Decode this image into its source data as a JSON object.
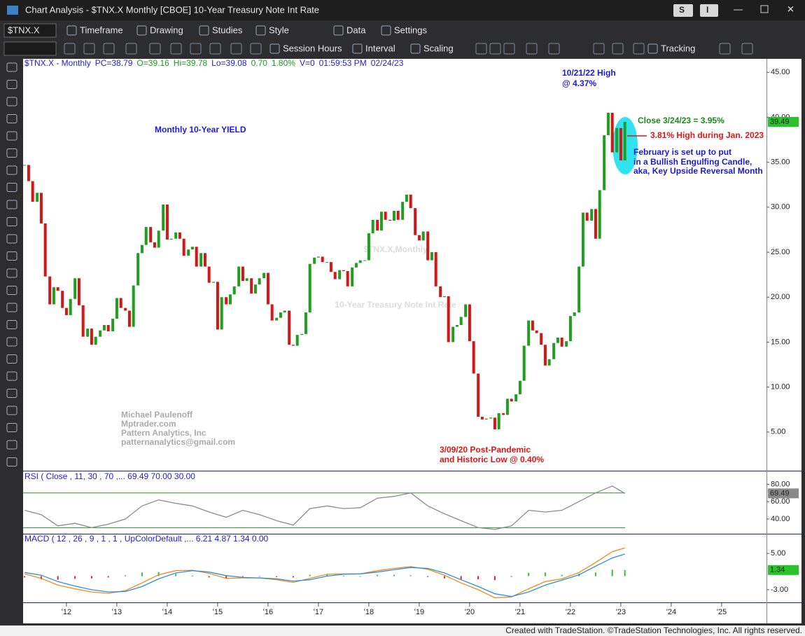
{
  "window": {
    "title": "Chart Analysis - $TNX.X Monthly [CBOE] 10-Year Treasury Note Int Rate",
    "buttons": [
      "S",
      "I"
    ]
  },
  "toolbar1": {
    "symbol": "$TNX.X",
    "items": [
      "Timeframe",
      "Drawing",
      "Studies",
      "Style",
      "Data",
      "Settings"
    ]
  },
  "toolbar2": {
    "items": [
      "Session Hours",
      "Interval",
      "Scaling",
      "Tracking"
    ]
  },
  "info": [
    {
      "text": "$TNX.X - Monthly",
      "color": "#1d1dd6"
    },
    {
      "text": "PC=38.79",
      "color": "#1d1dd6"
    },
    {
      "text": "O=39.16",
      "color": "#1a9a1a"
    },
    {
      "text": "Hi=39.78",
      "color": "#1a9a1a"
    },
    {
      "text": "Lo=39.08",
      "color": "#1d1dd6"
    },
    {
      "text": "0.70",
      "color": "#1a9a1a"
    },
    {
      "text": "1.80%",
      "color": "#1a9a1a"
    },
    {
      "text": "V=0",
      "color": "#1d1dd6"
    },
    {
      "text": "01:59:53 PM",
      "color": "#1d1dd6"
    },
    {
      "text": "02/24/23",
      "color": "#1d1dd6"
    }
  ],
  "headline": "Monthly 10-Year YIELD",
  "annotations": [
    {
      "text": "10/21/22 High",
      "color": "#1a1ad6"
    },
    {
      "text": "@ 4.37%",
      "color": "#1a1ad6"
    },
    {
      "text": "Close 3/24/23 = 3.95%",
      "color": "#1a8a1a"
    },
    {
      "text": "3.81% High during Jan. 2023",
      "color": "#e01515"
    },
    {
      "text": "February is set up to put",
      "color": "#1a1ad6"
    },
    {
      "text": "in a Bullish Engulfing Candle,",
      "color": "#1a1ad6"
    },
    {
      "text": "aka, Key Upside Reversal Month",
      "color": "#1a1ad6"
    },
    {
      "text": "3/09/20 Post-Pandemic",
      "color": "#e01515"
    },
    {
      "text": "and Historic Low @ 0.40%",
      "color": "#e01515"
    }
  ],
  "watermark": [
    "$TNX.X,Monthly",
    "10-Year Treasury Note Int Rate"
  ],
  "author": [
    "Michael Paulenoff",
    "Mptrader.com",
    "Pattern Analytics, Inc",
    "patternanalytics@gmail.com"
  ],
  "chart_data": [
    {
      "type": "candlestick",
      "up_color": "#1f9e1f",
      "down_color": "#d01818",
      "marker_label": "39.49",
      "marker_color": "#29c229",
      "xlim": [
        2011.14,
        2025.89
      ],
      "ylim": [
        0.7,
        46.5
      ],
      "xticks": [
        {
          "value": 2012,
          "label": "'12"
        },
        {
          "value": 2013,
          "label": "'13"
        },
        {
          "value": 2014,
          "label": "'14"
        },
        {
          "value": 2015,
          "label": "'15"
        },
        {
          "value": 2016,
          "label": "'16"
        },
        {
          "value": 2017,
          "label": "'17"
        },
        {
          "value": 2018,
          "label": "'18"
        },
        {
          "value": 2019,
          "label": "'19"
        },
        {
          "value": 2020,
          "label": "'20"
        },
        {
          "value": 2021,
          "label": "'21"
        },
        {
          "value": 2022,
          "label": "'22"
        },
        {
          "value": 2023,
          "label": "'23"
        },
        {
          "value": 2024,
          "label": "'24"
        },
        {
          "value": 2025,
          "label": "'25"
        }
      ],
      "yticks": [
        {
          "value": 45,
          "label": "45.00"
        },
        {
          "value": 40,
          "label": "40.00"
        },
        {
          "value": 35,
          "label": "35.00"
        },
        {
          "value": 30,
          "label": "30.00"
        },
        {
          "value": 25,
          "label": "25.00"
        },
        {
          "value": 20,
          "label": "20.00"
        },
        {
          "value": 15,
          "label": "15.00"
        },
        {
          "value": 10,
          "label": "10.00"
        },
        {
          "value": 5,
          "label": "5.00"
        }
      ],
      "x": [
        2011.17,
        2011.25,
        2011.33,
        2011.42,
        2011.5,
        2011.58,
        2011.67,
        2011.75,
        2011.83,
        2011.92,
        2012,
        2012.08,
        2012.17,
        2012.25,
        2012.33,
        2012.42,
        2012.5,
        2012.58,
        2012.67,
        2012.75,
        2012.83,
        2012.92,
        2013,
        2013.08,
        2013.17,
        2013.25,
        2013.33,
        2013.42,
        2013.5,
        2013.58,
        2013.67,
        2013.75,
        2013.83,
        2013.92,
        2014,
        2014.08,
        2014.17,
        2014.25,
        2014.33,
        2014.42,
        2014.5,
        2014.58,
        2014.67,
        2014.75,
        2014.83,
        2014.92,
        2015,
        2015.08,
        2015.17,
        2015.25,
        2015.33,
        2015.42,
        2015.5,
        2015.58,
        2015.67,
        2015.75,
        2015.83,
        2015.92,
        2016,
        2016.08,
        2016.17,
        2016.25,
        2016.33,
        2016.42,
        2016.5,
        2016.58,
        2016.67,
        2016.75,
        2016.83,
        2016.92,
        2017,
        2017.08,
        2017.17,
        2017.25,
        2017.33,
        2017.42,
        2017.5,
        2017.58,
        2017.67,
        2017.75,
        2017.83,
        2017.92,
        2018,
        2018.08,
        2018.17,
        2018.25,
        2018.33,
        2018.42,
        2018.5,
        2018.58,
        2018.67,
        2018.75,
        2018.83,
        2018.92,
        2019,
        2019.08,
        2019.17,
        2019.25,
        2019.33,
        2019.42,
        2019.5,
        2019.58,
        2019.67,
        2019.75,
        2019.83,
        2019.92,
        2020,
        2020.08,
        2020.17,
        2020.25,
        2020.33,
        2020.42,
        2020.5,
        2020.58,
        2020.67,
        2020.75,
        2020.83,
        2020.92,
        2021,
        2021.08,
        2021.17,
        2021.25,
        2021.33,
        2021.42,
        2021.5,
        2021.58,
        2021.67,
        2021.75,
        2021.83,
        2021.92,
        2022,
        2022.08,
        2022.17,
        2022.25,
        2022.33,
        2022.42,
        2022.5,
        2022.58,
        2022.67,
        2022.75,
        2022.83,
        2022.92,
        2023,
        2023.08
      ],
      "values": [
        34.7,
        32.9,
        30.6,
        31.6,
        28.2,
        22.3,
        19.2,
        21.1,
        20.7,
        18.8,
        18.0,
        19.8,
        22.1,
        19.1,
        15.6,
        16.5,
        14.7,
        15.6,
        16.3,
        16.9,
        16.2,
        17.6,
        19.9,
        18.8,
        18.5,
        16.7,
        21.3,
        24.9,
        25.8,
        27.8,
        26.1,
        25.5,
        27.4,
        30.3,
        26.4,
        26.5,
        27.2,
        26.5,
        24.6,
        25.3,
        25.6,
        23.4,
        24.9,
        23.4,
        21.6,
        21.7,
        16.4,
        20.0,
        19.2,
        20.3,
        21.2,
        23.4,
        21.8,
        22.1,
        20.4,
        21.4,
        22.1,
        22.7,
        19.2,
        17.4,
        17.7,
        18.3,
        18.5,
        14.7,
        14.6,
        15.8,
        15.9,
        18.3,
        23.7,
        24.4,
        24.5,
        23.9,
        23.9,
        22.8,
        22.0,
        23.0,
        22.9,
        21.2,
        23.3,
        23.8,
        24.1,
        24.1,
        27.1,
        28.6,
        27.4,
        29.5,
        28.6,
        28.5,
        29.6,
        28.6,
        30.6,
        31.4,
        29.9,
        26.9,
        26.3,
        27.3,
        24.1,
        25.0,
        21.2,
        20.0,
        20.1,
        15.0,
        16.7,
        16.9,
        17.8,
        19.2,
        15.1,
        11.5,
        6.7,
        6.4,
        6.5,
        6.6,
        5.3,
        7.1,
        6.9,
        8.7,
        8.4,
        9.2,
        10.7,
        14.6,
        17.4,
        16.3,
        16.0,
        14.7,
        12.4,
        13.1,
        14.9,
        15.5,
        14.5,
        15.1,
        17.9,
        18.3,
        23.4,
        29.4,
        28.5,
        29.8,
        26.5,
        31.9,
        38.0,
        40.5,
        36.1,
        38.8,
        35.2,
        39.49
      ]
    },
    {
      "type": "line",
      "label": "RSI ( Close , 11, 30 , 70 ,... 69.49 70.00 30.00",
      "marker_label": "69.49",
      "marker_color": "#8a8a8a",
      "xlim": [
        2011.14,
        2025.89
      ],
      "ylim": [
        23,
        94
      ],
      "yticks": [
        {
          "value": 80,
          "label": "80.00"
        },
        {
          "value": 60,
          "label": "60.00"
        },
        {
          "value": 40,
          "label": "40.00"
        }
      ],
      "hlines": [
        70,
        30
      ],
      "hline_color": "#2e8b2e",
      "x": [
        2011.17,
        2011.5,
        2011.83,
        2012.17,
        2012.5,
        2012.83,
        2013.17,
        2013.5,
        2013.83,
        2014.17,
        2014.5,
        2014.83,
        2015.17,
        2015.5,
        2015.83,
        2016.17,
        2016.5,
        2016.83,
        2017.17,
        2017.5,
        2017.83,
        2018.17,
        2018.5,
        2018.83,
        2019.17,
        2019.5,
        2019.83,
        2020.17,
        2020.5,
        2020.83,
        2021.17,
        2021.5,
        2021.83,
        2022.17,
        2022.5,
        2022.83,
        2023.08
      ],
      "series": [
        {
          "color": "#8c8c8c",
          "values": [
            50,
            45,
            32,
            35,
            30,
            34,
            40,
            55,
            62,
            58,
            55,
            48,
            42,
            50,
            45,
            38,
            33,
            52,
            55,
            52,
            53,
            64,
            66,
            70,
            55,
            46,
            38,
            30,
            28,
            32,
            50,
            48,
            50,
            60,
            70,
            78,
            69.49
          ]
        }
      ]
    },
    {
      "type": "line",
      "label": "MACD ( 12 , 26 , 9 , 1 , 1 , UpColorDefault ,... 6.21 4.87 1.34 0.00",
      "marker_label": "1.34",
      "marker_color": "#29c229",
      "xlim": [
        2011.14,
        2025.89
      ],
      "ylim": [
        -5.8,
        9.2
      ],
      "yticks": [
        {
          "value": 5,
          "label": "5.00"
        },
        {
          "value": -3,
          "label": "-3.00"
        }
      ],
      "x": [
        2011.17,
        2011.5,
        2011.83,
        2012.17,
        2012.5,
        2012.83,
        2013.17,
        2013.5,
        2013.83,
        2014.17,
        2014.5,
        2014.83,
        2015.17,
        2015.5,
        2015.83,
        2016.17,
        2016.5,
        2016.83,
        2017.17,
        2017.5,
        2017.83,
        2018.17,
        2018.5,
        2018.83,
        2019.17,
        2019.5,
        2019.83,
        2020.17,
        2020.5,
        2020.83,
        2021.17,
        2021.5,
        2021.83,
        2022.17,
        2022.5,
        2022.83,
        2023.08
      ],
      "series": [
        {
          "color": "#f08a1c",
          "values": [
            0.5,
            -0.5,
            -2,
            -2.8,
            -3.5,
            -3.8,
            -3.2,
            -1.5,
            0.3,
            1.2,
            1.3,
            0.6,
            -0.5,
            -0.4,
            -0.4,
            -0.8,
            -1.4,
            -0.5,
            0.4,
            0.5,
            0.5,
            1.2,
            1.7,
            2.1,
            1.5,
            0.2,
            -1.5,
            -3.0,
            -4.8,
            -4.6,
            -2.8,
            -1.2,
            -0.6,
            0.8,
            3.0,
            5.4,
            6.21
          ]
        },
        {
          "color": "#2a8fe0",
          "values": [
            0.8,
            0.2,
            -1.2,
            -2.2,
            -3.0,
            -3.5,
            -3.4,
            -2.3,
            -0.6,
            0.7,
            1.2,
            0.9,
            0.1,
            -0.3,
            -0.4,
            -0.6,
            -1.1,
            -0.8,
            0,
            0.4,
            0.5,
            0.9,
            1.4,
            1.9,
            1.7,
            0.7,
            -0.8,
            -2.3,
            -3.9,
            -4.5,
            -3.5,
            -2.0,
            -0.9,
            0.3,
            2.2,
            4.0,
            4.87
          ]
        }
      ],
      "histogram": {
        "up_color": "#2fbf2f",
        "down_color": "#e02020",
        "values": [
          -0.3,
          -0.7,
          -0.8,
          -0.6,
          -0.5,
          -0.3,
          0.2,
          0.8,
          0.9,
          0.5,
          0.1,
          -0.3,
          -0.6,
          -0.1,
          0,
          -0.2,
          -0.3,
          0.3,
          0.4,
          0.1,
          0,
          0.3,
          0.3,
          0.2,
          -0.2,
          -0.5,
          -0.7,
          -0.7,
          -0.9,
          -0.1,
          0.7,
          0.8,
          0.3,
          0.5,
          0.8,
          1.4,
          1.34
        ]
      }
    }
  ],
  "footer": "Created with TradeStation. ©TradeStation Technologies, Inc. All rights reserved."
}
